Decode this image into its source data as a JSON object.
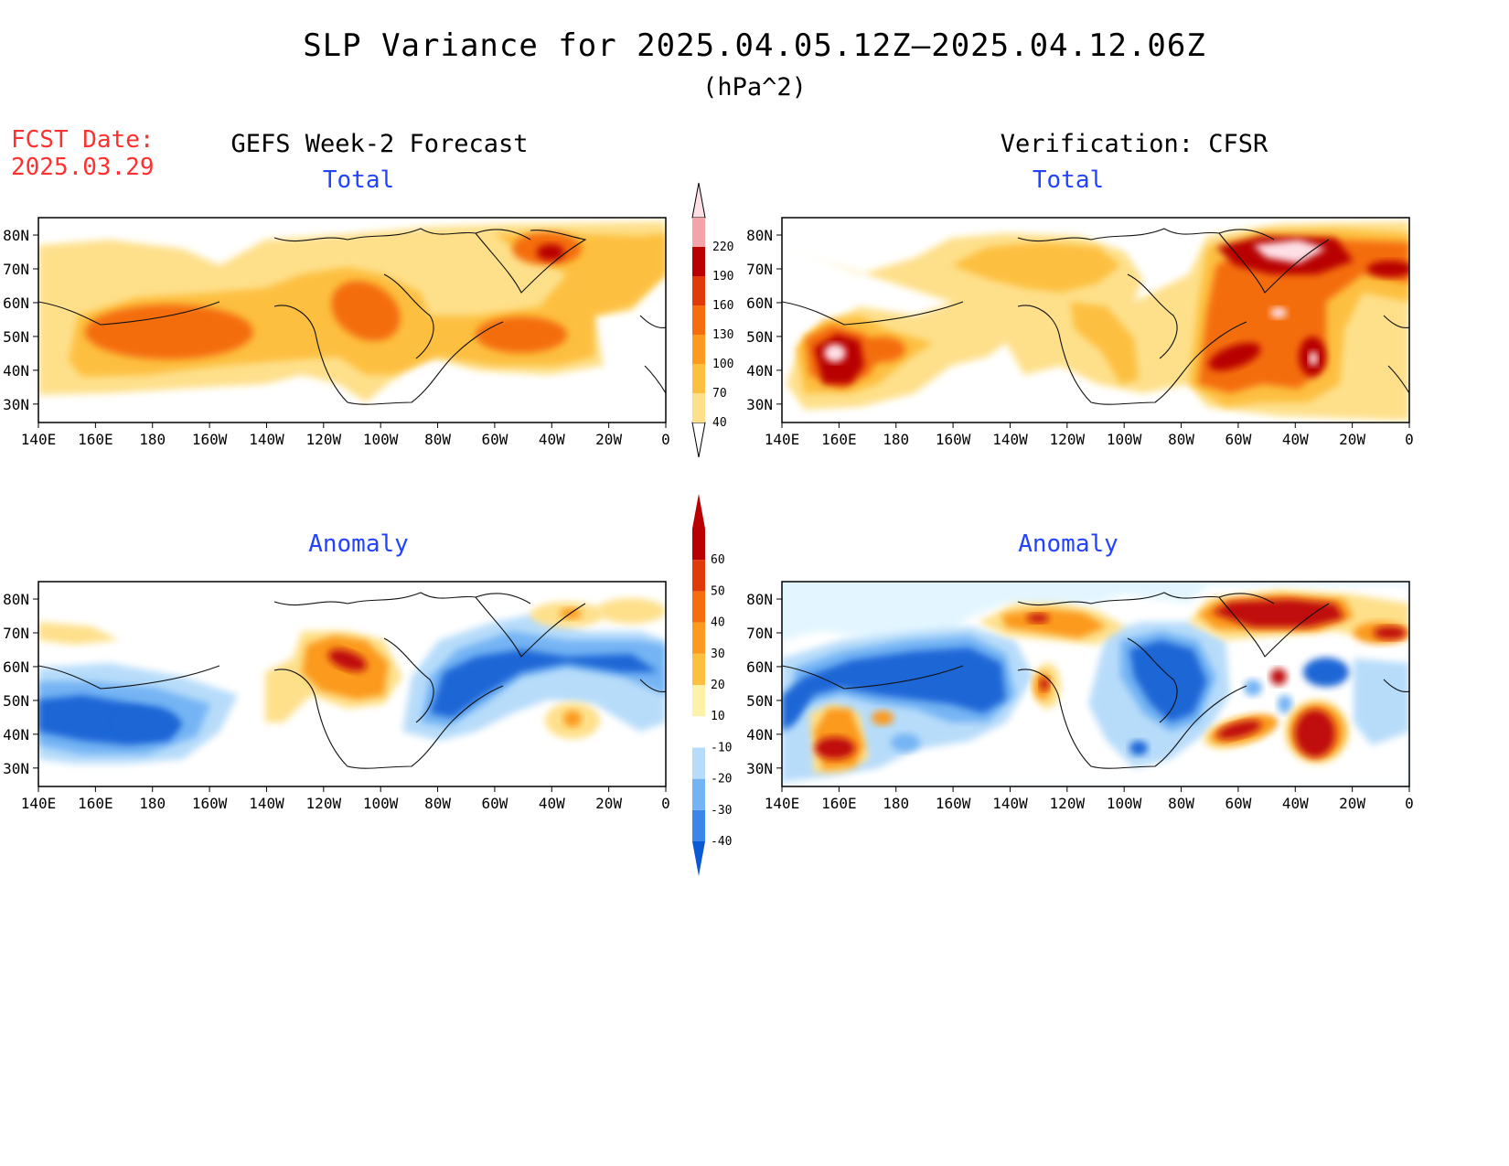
{
  "title": "SLP Variance for 2025.04.05.12Z—2025.04.12.06Z",
  "units": "(hPa^2)",
  "forecast_date_label": "FCST Date:",
  "forecast_date_value": "2025.03.29",
  "left_column_heading": "GEFS Week-2 Forecast",
  "right_column_heading": "Verification: CFSR",
  "panels": [
    {
      "title": "Total"
    },
    {
      "title": "Total"
    },
    {
      "title": "Anomaly"
    },
    {
      "title": "Anomaly"
    }
  ],
  "lat_labels": [
    "80N",
    "70N",
    "60N",
    "50N",
    "40N",
    "30N"
  ],
  "lon_labels": [
    "140E",
    "160E",
    "180",
    "160W",
    "140W",
    "120W",
    "100W",
    "80W",
    "60W",
    "40W",
    "20W",
    "0"
  ],
  "total_colorbar": {
    "levels": [
      "40",
      "70",
      "100",
      "130",
      "160",
      "190",
      "220"
    ],
    "colors": [
      "#fff2a8",
      "#fee08b",
      "#fdbf3f",
      "#fb9a1e",
      "#f46d0f",
      "#e03a0a",
      "#b80000",
      "#a00000",
      "#f4a3a8",
      "#fde0e6"
    ]
  },
  "anomaly_colorbar": {
    "levels": [
      "-40",
      "-30",
      "-20",
      "-10",
      "10",
      "20",
      "30",
      "40",
      "50",
      "60"
    ],
    "colors": [
      "#0a5ad4",
      "#2a7ae6",
      "#74b4f4",
      "#b7dcfa",
      "#e3f6ff",
      "#ffffff",
      "#fff2a8",
      "#fdbf3f",
      "#fb9a1e",
      "#f46d0f",
      "#e03a0a",
      "#b80000"
    ]
  },
  "colors": {
    "title_red": "#ff3030",
    "panel_title_blue": "#2244ff",
    "total_base": "#fee08b",
    "total_mid": "#fdbf3f",
    "total_high": "#f46d0f",
    "total_peak": "#b80000",
    "total_max": "#fde0e6",
    "anom_neg_light": "#b7dcfa",
    "anom_neg_mid": "#74b4f4",
    "anom_neg_strong": "#1f66d6",
    "anom_pos_light": "#fee08b",
    "anom_pos_mid": "#fb9a1e",
    "anom_pos_strong": "#c01010"
  }
}
